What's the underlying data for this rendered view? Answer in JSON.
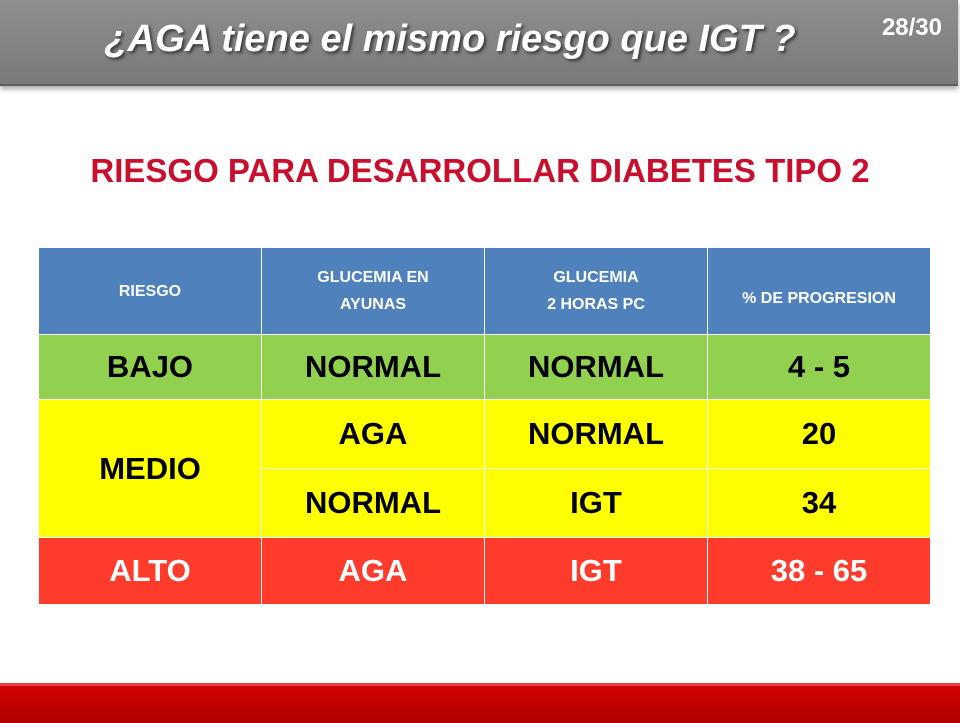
{
  "header": {
    "title": "¿AGA tiene el mismo riesgo que IGT ?",
    "page_number": "28/30",
    "background_color": "#808080"
  },
  "subtitle": "RIESGO PARA DESARROLLAR DIABETES TIPO 2",
  "table": {
    "headers": [
      {
        "line1": "RIESGO",
        "line2": ""
      },
      {
        "line1": "GLUCEMIA EN",
        "line2": "AYUNAS"
      },
      {
        "line1": "GLUCEMIA",
        "line2": "2 HORAS PC"
      },
      {
        "line1": "% DE PROGRESION",
        "line2": ""
      }
    ],
    "rows": {
      "low": {
        "risk": "BAJO",
        "fasting": "NORMAL",
        "two_hour": "NORMAL",
        "progression": "4 - 5",
        "color": "#92d050"
      },
      "medium": {
        "risk": "MEDIO",
        "color": "#ffff00",
        "sub": [
          {
            "fasting": "AGA",
            "two_hour": "NORMAL",
            "progression": "20"
          },
          {
            "fasting": "NORMAL",
            "two_hour": "IGT",
            "progression": "34"
          }
        ]
      },
      "high": {
        "risk": "ALTO",
        "fasting": "AGA",
        "two_hour": "IGT",
        "progression": "38 - 65",
        "color": "#ff3b2b"
      }
    }
  },
  "colors": {
    "header_blue": "#4f81bd",
    "subtitle_red": "#c8102e",
    "footer_red": "#c00000"
  }
}
